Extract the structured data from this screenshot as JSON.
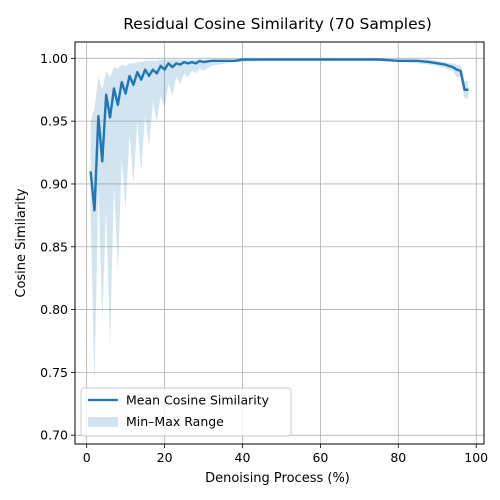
{
  "chart_data": {
    "type": "line",
    "title": "Residual Cosine Similarity (70 Samples)",
    "xlabel": "Denoising Process (%)",
    "ylabel": "Cosine Similarity",
    "xlim": [
      -3,
      102
    ],
    "ylim": [
      0.693,
      1.013
    ],
    "xticks": [
      0,
      20,
      40,
      60,
      80,
      100
    ],
    "yticks": [
      0.7,
      0.75,
      0.8,
      0.85,
      0.9,
      0.95,
      1.0
    ],
    "ytick_format": 2,
    "grid": true,
    "legend_position": "lower-left",
    "colors": {
      "line": "#1f77b4",
      "band": "#1f77b4"
    },
    "series": [
      {
        "name": "Mean Cosine Similarity",
        "kind": "line",
        "x": [
          1,
          2,
          3,
          4,
          5,
          6,
          7,
          8,
          9,
          10,
          11,
          12,
          13,
          14,
          15,
          16,
          17,
          18,
          19,
          20,
          21,
          22,
          23,
          24,
          25,
          26,
          27,
          28,
          29,
          30,
          32,
          34,
          36,
          38,
          40,
          45,
          50,
          55,
          60,
          65,
          70,
          75,
          80,
          85,
          88,
          90,
          92,
          94,
          95,
          96,
          97,
          98
        ],
        "y": [
          0.91,
          0.879,
          0.954,
          0.918,
          0.971,
          0.953,
          0.976,
          0.963,
          0.981,
          0.972,
          0.986,
          0.979,
          0.989,
          0.983,
          0.991,
          0.986,
          0.991,
          0.988,
          0.994,
          0.991,
          0.996,
          0.993,
          0.996,
          0.995,
          0.997,
          0.996,
          0.997,
          0.996,
          0.998,
          0.997,
          0.998,
          0.998,
          0.998,
          0.998,
          0.999,
          0.999,
          0.999,
          0.999,
          0.999,
          0.999,
          0.999,
          0.999,
          0.998,
          0.998,
          0.997,
          0.996,
          0.995,
          0.993,
          0.991,
          0.99,
          0.975,
          0.975
        ]
      },
      {
        "name": "Min–Max Range",
        "kind": "band",
        "x": [
          1,
          2,
          3,
          4,
          5,
          6,
          7,
          8,
          9,
          10,
          11,
          12,
          13,
          14,
          15,
          16,
          17,
          18,
          19,
          20,
          21,
          22,
          23,
          24,
          25,
          26,
          27,
          28,
          29,
          30,
          32,
          34,
          36,
          38,
          40,
          45,
          50,
          55,
          60,
          65,
          70,
          75,
          80,
          85,
          88,
          90,
          92,
          94,
          95,
          96,
          97,
          98
        ],
        "y_min": [
          0.88,
          0.74,
          0.9,
          0.79,
          0.88,
          0.77,
          0.9,
          0.83,
          0.92,
          0.88,
          0.94,
          0.9,
          0.95,
          0.91,
          0.955,
          0.93,
          0.965,
          0.95,
          0.97,
          0.96,
          0.98,
          0.97,
          0.985,
          0.98,
          0.988,
          0.985,
          0.99,
          0.988,
          0.992,
          0.99,
          0.994,
          0.995,
          0.996,
          0.997,
          0.997,
          0.998,
          0.998,
          0.998,
          0.998,
          0.998,
          0.998,
          0.998,
          0.997,
          0.996,
          0.995,
          0.994,
          0.992,
          0.99,
          0.985,
          0.985,
          0.968,
          0.968
        ],
        "y_max": [
          0.95,
          0.96,
          0.985,
          0.975,
          0.99,
          0.985,
          0.993,
          0.992,
          0.995,
          0.994,
          0.996,
          0.996,
          0.997,
          0.997,
          0.998,
          0.998,
          0.998,
          0.998,
          0.999,
          0.999,
          0.999,
          0.999,
          0.999,
          0.999,
          0.999,
          0.999,
          0.999,
          0.999,
          0.999,
          0.999,
          0.999,
          0.999,
          0.999,
          0.999,
          0.999,
          0.999,
          0.999,
          0.999,
          0.999,
          0.999,
          0.999,
          0.999,
          0.999,
          0.999,
          0.999,
          0.998,
          0.997,
          0.996,
          0.995,
          0.994,
          0.982,
          0.982
        ]
      }
    ]
  }
}
